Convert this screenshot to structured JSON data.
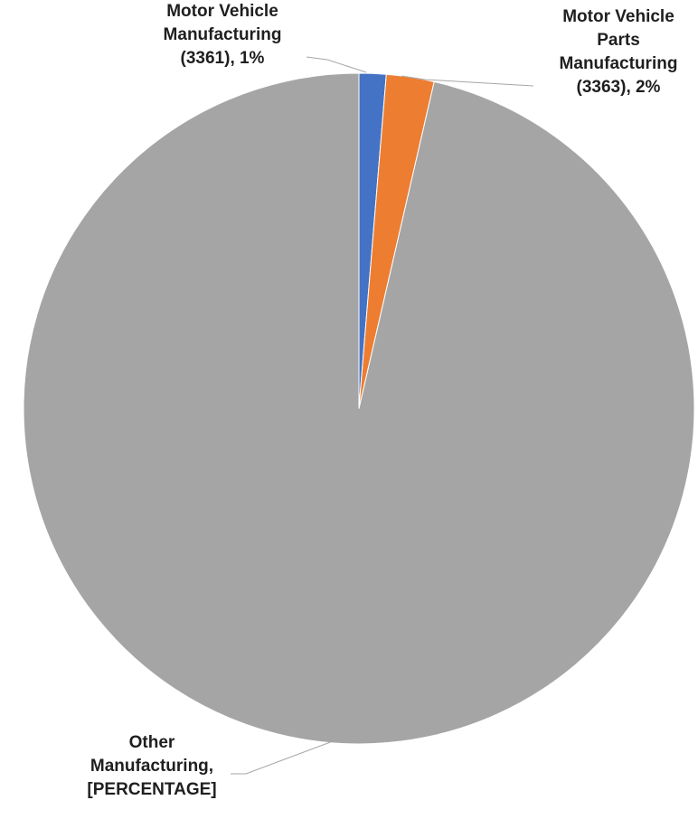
{
  "chart_data": {
    "type": "pie",
    "title": "",
    "slices": [
      {
        "name_lines": [
          "Motor Vehicle",
          "Manufacturing",
          "(3361), 1%"
        ],
        "category": "Motor Vehicle Manufacturing (3361)",
        "value": 1.3,
        "value_label": "1%",
        "color": "#4472C4"
      },
      {
        "name_lines": [
          "Motor Vehicle",
          "Parts",
          "Manufacturing",
          "(3363), 2%"
        ],
        "category": "Motor Vehicle Parts Manufacturing (3363)",
        "value": 2.3,
        "value_label": "2%",
        "color": "#ED7D31"
      },
      {
        "name_lines": [
          "Other",
          "Manufacturing,",
          "[PERCENTAGE]"
        ],
        "category": "Other Manufacturing",
        "value": 96.4,
        "value_label": "[PERCENTAGE]",
        "color": "#A5A5A5"
      }
    ],
    "start_angle": "top (12 o'clock)",
    "direction": "clockwise",
    "legend": "none",
    "leader_line_color": "#A6A6A6"
  }
}
